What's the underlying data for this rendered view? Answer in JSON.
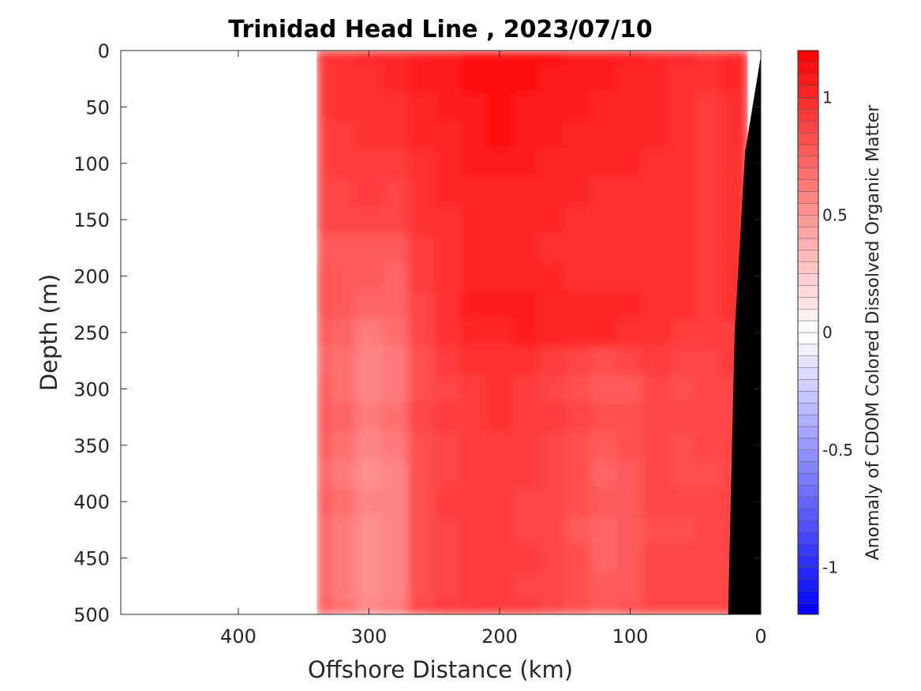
{
  "chart_data": {
    "type": "heatmap",
    "title": "Trinidad Head Line , 2023/07/10",
    "xlabel": "Offshore Distance (km)",
    "ylabel": "Depth (m)",
    "colorbar_label": "Anomaly of CDOM Colored Dissolved Organic Matter",
    "xlim": [
      490,
      0
    ],
    "ylim": [
      0,
      500
    ],
    "x_ticks": [
      400,
      300,
      200,
      100,
      0
    ],
    "x_tick_labels": [
      "400",
      "300",
      "200",
      "100",
      "0"
    ],
    "y_ticks": [
      0,
      50,
      100,
      150,
      200,
      250,
      300,
      350,
      400,
      450,
      500
    ],
    "y_tick_labels": [
      "0",
      "50",
      "100",
      "150",
      "200",
      "250",
      "300",
      "350",
      "400",
      "450",
      "500"
    ],
    "colorbar_range": [
      -1.2,
      1.2
    ],
    "colorbar_ticks": [
      1,
      0.5,
      0,
      -0.5,
      -1
    ],
    "colorbar_tick_labels": [
      "1",
      "0.5",
      "0",
      "-0.5",
      "-1"
    ],
    "colormap": {
      "negative": "#0000ff",
      "zero": "#ffffff",
      "positive": "#ff0000"
    },
    "data_extent_km": [
      340,
      10
    ],
    "bathymetry_color": "#000000",
    "bathymetry": [
      {
        "x": 0,
        "depth": 5
      },
      {
        "x": 12,
        "depth": 90
      },
      {
        "x": 20,
        "depth": 250
      },
      {
        "x": 23,
        "depth": 400
      },
      {
        "x": 25,
        "depth": 500
      }
    ],
    "depths": [
      0,
      25,
      50,
      75,
      100,
      125,
      150,
      175,
      200,
      225,
      250,
      275,
      300,
      325,
      350,
      375,
      400,
      425,
      450,
      475,
      500
    ],
    "distances": [
      340,
      320,
      300,
      280,
      260,
      240,
      220,
      200,
      180,
      160,
      140,
      120,
      100,
      80,
      60,
      40,
      20,
      10
    ],
    "values": [
      [
        0.95,
        0.98,
        1.0,
        1.0,
        1.05,
        1.08,
        1.1,
        1.1,
        1.1,
        1.1,
        1.08,
        1.05,
        1.05,
        1.02,
        1.0,
        0.98,
        1.0,
        1.0
      ],
      [
        0.92,
        0.95,
        0.98,
        1.0,
        1.05,
        1.08,
        1.1,
        1.1,
        1.1,
        1.08,
        1.05,
        1.05,
        1.02,
        1.02,
        0.98,
        0.95,
        1.0,
        1.0
      ],
      [
        0.9,
        0.95,
        0.98,
        0.98,
        1.02,
        1.05,
        1.08,
        1.1,
        1.08,
        1.05,
        1.05,
        1.02,
        1.02,
        1.0,
        0.95,
        0.92,
        0.98,
        1.0
      ],
      [
        0.88,
        0.92,
        0.95,
        0.95,
        1.0,
        1.02,
        1.05,
        1.1,
        1.05,
        1.05,
        1.02,
        1.0,
        1.0,
        1.0,
        0.95,
        0.92,
        0.98,
        1.0
      ],
      [
        0.88,
        0.9,
        0.92,
        0.92,
        0.98,
        1.02,
        1.05,
        1.05,
        1.05,
        1.02,
        1.0,
        1.0,
        1.0,
        0.98,
        0.95,
        0.92,
        0.98,
        0.98
      ],
      [
        0.85,
        0.88,
        0.9,
        0.88,
        0.95,
        1.0,
        1.02,
        1.02,
        1.02,
        1.0,
        1.0,
        0.98,
        0.98,
        0.98,
        0.95,
        0.92,
        0.95,
        0.98
      ],
      [
        0.85,
        0.85,
        0.85,
        0.85,
        0.95,
        0.98,
        1.0,
        1.0,
        1.0,
        1.0,
        0.98,
        0.98,
        0.98,
        0.98,
        0.95,
        0.92,
        0.95,
        0.98
      ],
      [
        0.78,
        0.75,
        0.75,
        0.75,
        0.9,
        0.98,
        1.0,
        1.02,
        1.0,
        0.98,
        0.98,
        0.95,
        0.98,
        0.98,
        0.95,
        0.92,
        0.95,
        0.98
      ],
      [
        0.8,
        0.78,
        0.75,
        0.72,
        0.9,
        0.98,
        1.02,
        1.02,
        1.02,
        1.0,
        0.98,
        0.98,
        0.98,
        0.98,
        0.95,
        0.92,
        0.95,
        0.98
      ],
      [
        0.8,
        0.75,
        0.7,
        0.7,
        0.88,
        0.98,
        1.05,
        1.05,
        1.05,
        1.02,
        1.0,
        1.0,
        1.0,
        0.98,
        0.95,
        0.92,
        0.95,
        0.98
      ],
      [
        0.75,
        0.7,
        0.62,
        0.65,
        0.85,
        0.95,
        1.0,
        1.02,
        1.05,
        1.02,
        1.0,
        1.0,
        0.98,
        0.95,
        0.92,
        0.9,
        0.92,
        0.98
      ],
      [
        0.72,
        0.65,
        0.55,
        0.6,
        0.82,
        0.9,
        0.95,
        0.98,
        0.95,
        0.92,
        0.85,
        0.8,
        0.85,
        0.9,
        0.85,
        0.85,
        0.9,
        0.98
      ],
      [
        0.75,
        0.65,
        0.58,
        0.6,
        0.82,
        0.88,
        0.92,
        0.95,
        0.92,
        0.88,
        0.8,
        0.75,
        0.78,
        0.85,
        0.82,
        0.85,
        0.88,
        0.98
      ],
      [
        0.78,
        0.7,
        0.6,
        0.65,
        0.85,
        0.9,
        0.92,
        0.95,
        0.92,
        0.9,
        0.85,
        0.8,
        0.82,
        0.88,
        0.85,
        0.85,
        0.88,
        0.98
      ],
      [
        0.75,
        0.68,
        0.58,
        0.6,
        0.82,
        0.88,
        0.92,
        0.92,
        0.9,
        0.88,
        0.82,
        0.78,
        0.8,
        0.85,
        0.82,
        0.85,
        0.88,
        0.98
      ],
      [
        0.72,
        0.62,
        0.52,
        0.55,
        0.8,
        0.88,
        0.92,
        0.92,
        0.9,
        0.85,
        0.8,
        0.72,
        0.75,
        0.85,
        0.82,
        0.82,
        0.88,
        0.98
      ],
      [
        0.75,
        0.65,
        0.55,
        0.58,
        0.82,
        0.9,
        0.92,
        0.9,
        0.88,
        0.85,
        0.8,
        0.75,
        0.78,
        0.85,
        0.85,
        0.85,
        0.88,
        0.98
      ],
      [
        0.72,
        0.62,
        0.52,
        0.55,
        0.8,
        0.88,
        0.9,
        0.9,
        0.88,
        0.85,
        0.78,
        0.72,
        0.75,
        0.82,
        0.82,
        0.85,
        0.88,
        0.98
      ],
      [
        0.7,
        0.6,
        0.5,
        0.55,
        0.8,
        0.88,
        0.92,
        0.92,
        0.9,
        0.85,
        0.8,
        0.72,
        0.75,
        0.85,
        0.85,
        0.85,
        0.88,
        0.98
      ],
      [
        0.72,
        0.62,
        0.52,
        0.58,
        0.82,
        0.88,
        0.9,
        0.9,
        0.88,
        0.85,
        0.8,
        0.75,
        0.78,
        0.85,
        0.85,
        0.85,
        0.88,
        0.98
      ],
      [
        0.75,
        0.65,
        0.55,
        0.6,
        0.85,
        0.9,
        0.92,
        0.92,
        0.9,
        0.88,
        0.82,
        0.78,
        0.8,
        0.85,
        0.85,
        0.85,
        0.88,
        0.98
      ]
    ]
  }
}
